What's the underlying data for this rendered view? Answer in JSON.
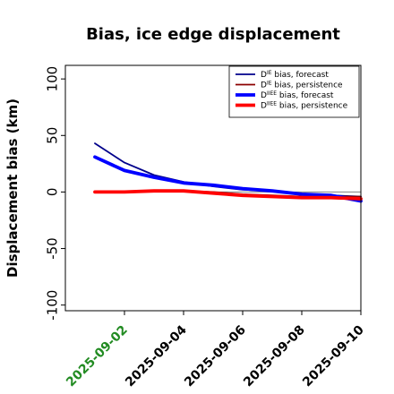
{
  "chart_data": {
    "type": "line",
    "title": "Bias, ice edge displacement",
    "xlabel": "",
    "ylabel": "Displacement bias (km)",
    "ylim": [
      -105,
      112
    ],
    "xlim": [
      "2025-08-31",
      "2025-09-10"
    ],
    "yticks": [
      -100,
      -50,
      0,
      50,
      100
    ],
    "xticks": [
      "2025-09-02",
      "2025-09-04",
      "2025-09-06",
      "2025-09-08",
      "2025-09-10"
    ],
    "highlight_tick": "2025-09-02",
    "highlight_color": "#228B22",
    "zero_line_color": "#808080",
    "legend_position": "top-right",
    "x": [
      "2025-09-01",
      "2025-09-02",
      "2025-09-03",
      "2025-09-04",
      "2025-09-05",
      "2025-09-06",
      "2025-09-07",
      "2025-09-08",
      "2025-09-09",
      "2025-09-10"
    ],
    "series": [
      {
        "name_main": "D",
        "name_sup": "IE",
        "name_rest": " bias, forecast",
        "color": "#00008B",
        "width": 1.8,
        "values": [
          43,
          26,
          15,
          9,
          5,
          2,
          1,
          -2,
          -3,
          -4
        ]
      },
      {
        "name_main": "D",
        "name_sup": "IE",
        "name_rest": " bias, persistence",
        "color": "#8B0000",
        "width": 1.8,
        "values": [
          0,
          0,
          1,
          1,
          0,
          -2,
          -3,
          -4,
          -4,
          -4
        ]
      },
      {
        "name_main": "D",
        "name_sup": "IIEE",
        "name_rest": " bias, forecast",
        "color": "#0000FF",
        "width": 3.8,
        "values": [
          31,
          19,
          13,
          8,
          6,
          3,
          1,
          -2,
          -3,
          -8
        ]
      },
      {
        "name_main": "D",
        "name_sup": "IIEE",
        "name_rest": " bias, persistence",
        "color": "#FF0000",
        "width": 3.8,
        "values": [
          0,
          0,
          1,
          1,
          -1,
          -3,
          -4,
          -5,
          -5,
          -6
        ]
      }
    ]
  }
}
